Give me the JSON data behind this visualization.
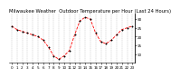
{
  "title": "Milwaukee Weather  Outdoor Temperature per Hour (Last 24 Hours)",
  "x_values": [
    0,
    1,
    2,
    3,
    4,
    5,
    6,
    7,
    8,
    9,
    10,
    11,
    12,
    13,
    14,
    15,
    16,
    17,
    18,
    19,
    20,
    21,
    22,
    23
  ],
  "y_values": [
    26,
    24,
    23,
    22,
    21,
    20,
    18,
    14,
    9,
    7,
    9,
    12,
    21,
    29,
    31,
    30,
    22,
    17,
    16,
    18,
    21,
    24,
    25,
    26
  ],
  "line_color": "#ff0000",
  "marker_color": "#000000",
  "bg_color": "#ffffff",
  "grid_color": "#888888",
  "title_color": "#000000",
  "ylim": [
    5,
    33
  ],
  "xlim": [
    -0.5,
    23.5
  ],
  "ytick_values": [
    10,
    15,
    20,
    25,
    30
  ],
  "xtick_values": [
    0,
    1,
    2,
    3,
    4,
    5,
    6,
    7,
    8,
    9,
    10,
    11,
    12,
    13,
    14,
    15,
    16,
    17,
    18,
    19,
    20,
    21,
    22,
    23
  ],
  "title_fontsize": 3.8,
  "tick_fontsize": 3.0,
  "line_width": 0.6,
  "marker_size": 1.0
}
